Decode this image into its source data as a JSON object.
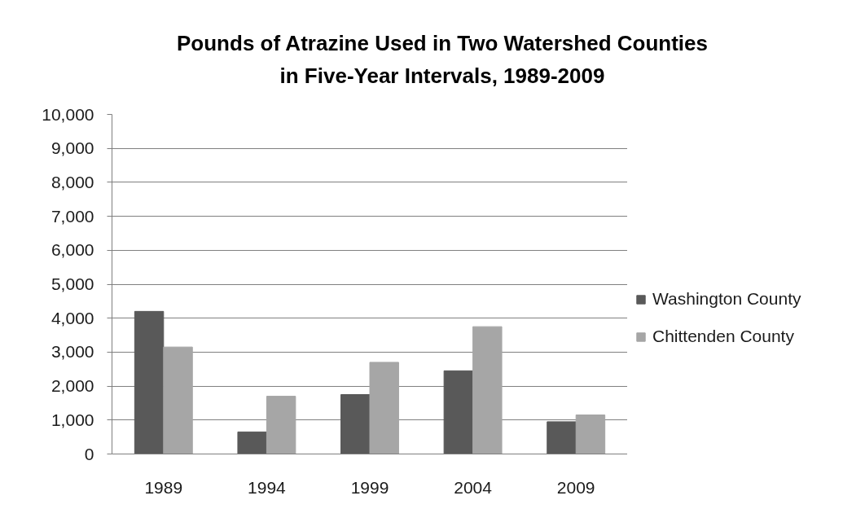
{
  "chart_data": {
    "type": "bar",
    "title": "Pounds of Atrazine Used in Two Watershed Counties\nin Five-Year Intervals, 1989-2009",
    "categories": [
      "1989",
      "1994",
      "1999",
      "2004",
      "2009"
    ],
    "series": [
      {
        "name": "Washington County",
        "color": "#595959",
        "values": [
          4200,
          650,
          1750,
          2450,
          950
        ]
      },
      {
        "name": "Chittenden County",
        "color": "#a6a6a6",
        "values": [
          3150,
          1700,
          2700,
          3750,
          1150
        ]
      }
    ],
    "ylim": [
      0,
      10000
    ],
    "yticks": [
      {
        "value": 0,
        "label": "0"
      },
      {
        "value": 1000,
        "label": "1,000"
      },
      {
        "value": 2000,
        "label": "2,000"
      },
      {
        "value": 3000,
        "label": "3,000"
      },
      {
        "value": 4000,
        "label": "4,000"
      },
      {
        "value": 5000,
        "label": "5,000"
      },
      {
        "value": 6000,
        "label": "6,000"
      },
      {
        "value": 7000,
        "label": "7,000"
      },
      {
        "value": 8000,
        "label": "8,000"
      },
      {
        "value": 9000,
        "label": "9,000"
      },
      {
        "value": 10000,
        "label": "10,000"
      }
    ],
    "grid": "y",
    "legend": "right"
  }
}
